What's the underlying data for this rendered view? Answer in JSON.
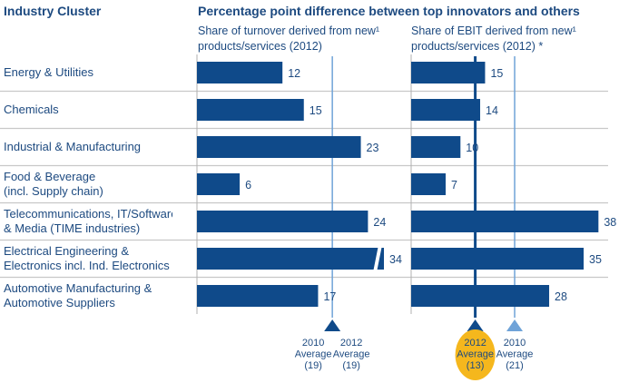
{
  "header": {
    "cluster_label": "Industry Cluster",
    "title": "Percentage point difference between top innovators and others"
  },
  "chart_data": [
    {
      "type": "bar",
      "orientation": "horizontal",
      "subtitle_line1": "Share of turnover derived from new¹",
      "subtitle_line2": "products/services (2012)",
      "categories": [
        "Energy & Utilities",
        "Chemicals",
        "Industrial & Manufacturing",
        "Food & Beverage (incl. Supply chain)",
        "Telecommunications, IT/Software & Media (TIME industries)",
        "Electrical Engineering & Electronics incl. Ind. Electronics",
        "Automotive Manufacturing & Automotive Suppliers"
      ],
      "values": [
        12,
        15,
        23,
        6,
        24,
        34,
        17
      ],
      "broken_axis_bar": "Electrical Engineering & Electronics incl. Ind. Electronics",
      "reference_lines": [
        {
          "label_year": "2010",
          "label_word": "Average",
          "label_value": "(19)",
          "value": 19
        },
        {
          "label_year": "2012",
          "label_word": "Average",
          "label_value": "(19)",
          "value": 19
        }
      ]
    },
    {
      "type": "bar",
      "orientation": "horizontal",
      "subtitle_line1": "Share of EBIT derived from new¹",
      "subtitle_line2": "products/services (2012) *",
      "categories": [
        "Energy & Utilities",
        "Chemicals",
        "Industrial & Manufacturing",
        "Food & Beverage (incl. Supply chain)",
        "Telecommunications, IT/Software & Media (TIME industries)",
        "Electrical Engineering & Electronics incl. Ind. Electronics",
        "Automotive Manufacturing & Automotive Suppliers"
      ],
      "values": [
        15,
        14,
        10,
        7,
        38,
        35,
        28
      ],
      "reference_lines": [
        {
          "label_year": "2012",
          "label_word": "Average",
          "label_value": "(13)",
          "value": 13,
          "highlighted": true
        },
        {
          "label_year": "2010",
          "label_word": "Average",
          "label_value": "(21)",
          "value": 21
        }
      ]
    }
  ],
  "rows": [
    {
      "line1": "Energy & Utilities",
      "line2": ""
    },
    {
      "line1": "Chemicals",
      "line2": ""
    },
    {
      "line1": "Industrial & Manufacturing",
      "line2": ""
    },
    {
      "line1": "Food & Beverage",
      "line2": "(incl. Supply chain)"
    },
    {
      "line1": "Telecommunications, IT/Software",
      "line2": "& Media (TIME industries)"
    },
    {
      "line1": "Electrical Engineering &",
      "line2": "Electronics incl. Ind. Electronics"
    },
    {
      "line1": "Automotive Manufacturing &",
      "line2": "Automotive Suppliers"
    }
  ],
  "colors": {
    "bar": "#0f4a8a",
    "line2012": "#0f4a8a",
    "line2010": "#6fa3d8",
    "highlight": "#f5b71d",
    "separator": "#c8c8c8"
  }
}
